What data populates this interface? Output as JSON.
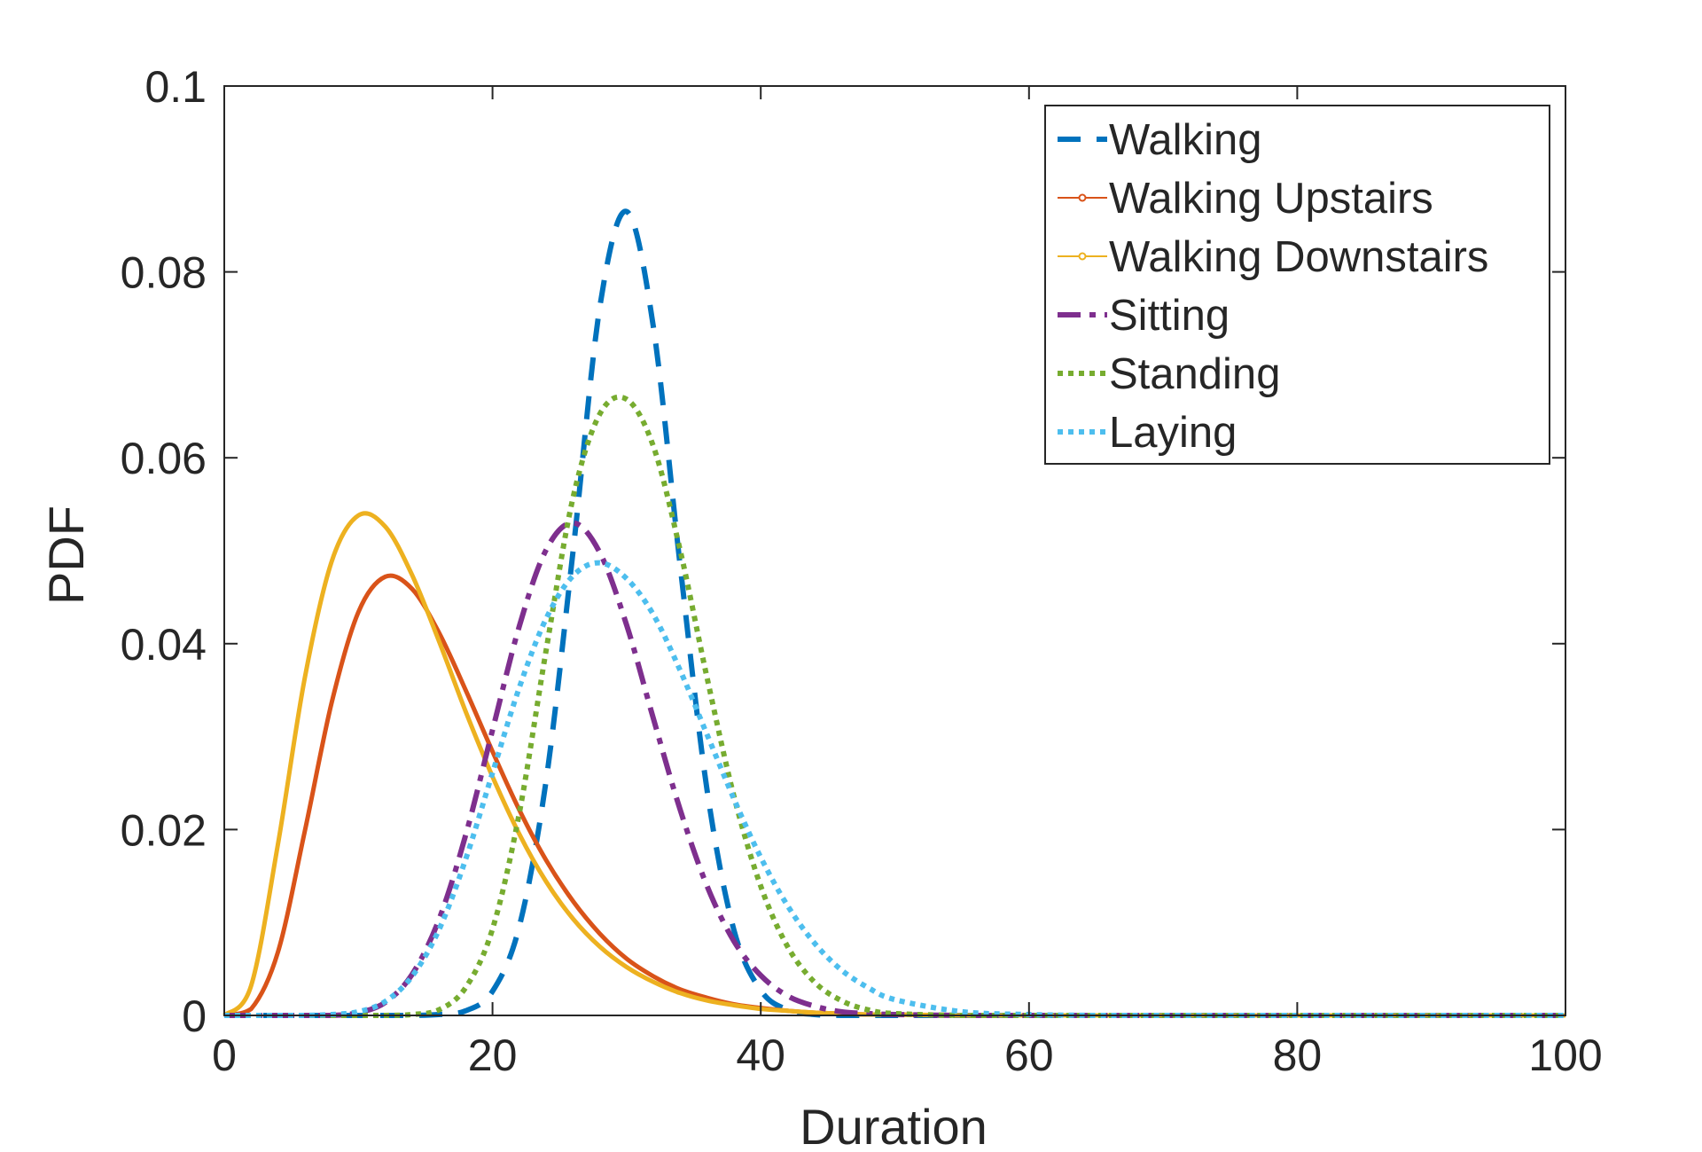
{
  "chart_data": {
    "type": "line",
    "title": "",
    "xlabel": "Duration",
    "ylabel": "PDF",
    "xlim": [
      0,
      100
    ],
    "ylim": [
      0,
      0.1
    ],
    "xticks": [
      0,
      20,
      40,
      60,
      80,
      100
    ],
    "xtick_labels": [
      "0",
      "20",
      "40",
      "60",
      "80",
      "100"
    ],
    "yticks": [
      0,
      0.02,
      0.04,
      0.06,
      0.08,
      0.1
    ],
    "ytick_labels": [
      "0",
      "0.02",
      "0.04",
      "0.06",
      "0.08",
      "0.1"
    ],
    "grid": false,
    "legend_position": "top-right",
    "x": [
      0,
      2,
      4,
      6,
      8,
      10,
      12,
      14,
      16,
      18,
      20,
      22,
      24,
      26,
      28,
      30,
      32,
      34,
      36,
      38,
      40,
      42,
      44,
      46,
      48,
      50,
      55,
      60,
      65,
      70,
      80,
      90,
      100
    ],
    "series": [
      {
        "name": "Walking",
        "color": "#0072BD",
        "style": "dashed",
        "marker": "none",
        "values": [
          0,
          0,
          0,
          0,
          0,
          0,
          0,
          0,
          0.0001,
          0.0005,
          0.0026,
          0.0096,
          0.0253,
          0.0499,
          0.0762,
          0.0865,
          0.074,
          0.0483,
          0.0242,
          0.0092,
          0.0027,
          0.0006,
          0.0001,
          0,
          0,
          0,
          0,
          0,
          0,
          0,
          0,
          0,
          0
        ]
      },
      {
        "name": "Walking Upstairs",
        "color": "#D95319",
        "style": "solid",
        "marker": "dot",
        "values": [
          0,
          0.0007,
          0.0068,
          0.0198,
          0.0336,
          0.0434,
          0.0472,
          0.0459,
          0.0412,
          0.035,
          0.0284,
          0.0221,
          0.0167,
          0.0123,
          0.0088,
          0.0061,
          0.0042,
          0.0028,
          0.0019,
          0.0012,
          0.0008,
          0.0005,
          0.0003,
          0.0002,
          0.0001,
          0.0001,
          0,
          0,
          0,
          0,
          0,
          0,
          0
        ]
      },
      {
        "name": "Walking Downstairs",
        "color": "#EDB120",
        "style": "solid",
        "marker": "diamond",
        "values": [
          0,
          0.0032,
          0.0184,
          0.0363,
          0.0488,
          0.0538,
          0.0526,
          0.0474,
          0.0403,
          0.0327,
          0.0257,
          0.0195,
          0.0144,
          0.0104,
          0.0074,
          0.0052,
          0.0036,
          0.0024,
          0.0016,
          0.0011,
          0.0007,
          0.0005,
          0.0003,
          0.0002,
          0.0001,
          0.0001,
          0,
          0,
          0,
          0,
          0,
          0,
          0
        ]
      },
      {
        "name": "Sitting",
        "color": "#7E2F8E",
        "style": "dash-dot",
        "marker": "none",
        "values": [
          0,
          0,
          0,
          0,
          0,
          0.0003,
          0.0014,
          0.0044,
          0.0103,
          0.0194,
          0.0307,
          0.0419,
          0.0501,
          0.053,
          0.0498,
          0.042,
          0.0319,
          0.0221,
          0.0139,
          0.008,
          0.0043,
          0.0021,
          0.001,
          0.0004,
          0.0002,
          0.0001,
          0,
          0,
          0,
          0,
          0,
          0,
          0
        ]
      },
      {
        "name": "Standing",
        "color": "#77AC30",
        "style": "dotted",
        "marker": "none",
        "values": [
          0,
          0,
          0,
          0,
          0,
          0,
          0,
          0.0001,
          0.0006,
          0.003,
          0.0093,
          0.0218,
          0.0393,
          0.0557,
          0.0647,
          0.0663,
          0.0612,
          0.05,
          0.0363,
          0.0236,
          0.0139,
          0.0074,
          0.0036,
          0.0016,
          0.0006,
          0.0002,
          0,
          0,
          0,
          0,
          0,
          0,
          0
        ]
      },
      {
        "name": "Laying",
        "color": "#4DBEEE",
        "style": "dotted",
        "marker": "none",
        "values": [
          0,
          0,
          0,
          0,
          0.0001,
          0.0004,
          0.0015,
          0.0042,
          0.0092,
          0.0168,
          0.0261,
          0.0353,
          0.0427,
          0.0473,
          0.0487,
          0.047,
          0.0431,
          0.0371,
          0.0302,
          0.0233,
          0.017,
          0.0118,
          0.0078,
          0.0049,
          0.003,
          0.0017,
          0.0004,
          0.0001,
          0,
          0,
          0,
          0,
          0
        ]
      }
    ]
  }
}
